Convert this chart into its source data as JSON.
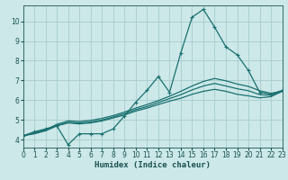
{
  "xlabel": "Humidex (Indice chaleur)",
  "bg_color": "#cce8e8",
  "grid_color": "#a8cccc",
  "line_color": "#1a7070",
  "xlim": [
    0,
    23
  ],
  "ylim": [
    3.6,
    10.8
  ],
  "xticks": [
    0,
    1,
    2,
    3,
    4,
    5,
    6,
    7,
    8,
    9,
    10,
    11,
    12,
    13,
    14,
    15,
    16,
    17,
    18,
    19,
    20,
    21,
    22,
    23
  ],
  "yticks": [
    4,
    5,
    6,
    7,
    8,
    9,
    10
  ],
  "series": [
    [
      4.2,
      4.4,
      4.55,
      4.7,
      3.75,
      4.3,
      4.3,
      4.3,
      4.55,
      5.2,
      5.9,
      6.5,
      7.2,
      6.4,
      8.4,
      10.2,
      10.6,
      9.7,
      8.7,
      8.3,
      7.5,
      6.4,
      6.3,
      6.5
    ],
    [
      4.2,
      4.3,
      4.45,
      4.7,
      4.85,
      4.8,
      4.85,
      4.95,
      5.1,
      5.25,
      5.45,
      5.6,
      5.78,
      5.95,
      6.1,
      6.3,
      6.45,
      6.55,
      6.45,
      6.3,
      6.22,
      6.12,
      6.18,
      6.45
    ],
    [
      4.2,
      4.35,
      4.5,
      4.78,
      4.95,
      4.92,
      4.98,
      5.08,
      5.22,
      5.4,
      5.6,
      5.78,
      5.98,
      6.2,
      6.45,
      6.72,
      6.95,
      7.1,
      6.98,
      6.82,
      6.7,
      6.48,
      6.35,
      6.45
    ],
    [
      4.2,
      4.32,
      4.48,
      4.72,
      4.88,
      4.85,
      4.9,
      5.0,
      5.15,
      5.32,
      5.52,
      5.68,
      5.88,
      6.08,
      6.28,
      6.52,
      6.72,
      6.85,
      6.72,
      6.58,
      6.48,
      6.28,
      6.25,
      6.45
    ]
  ]
}
